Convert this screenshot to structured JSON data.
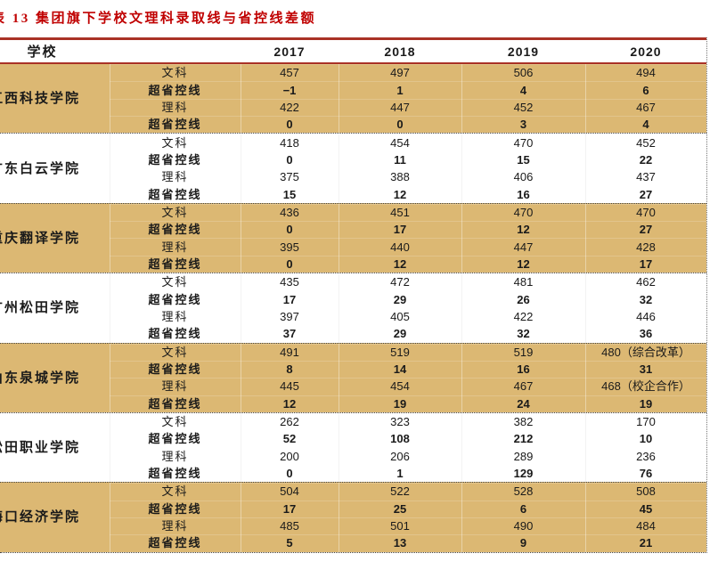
{
  "title": "表 13 集团旗下学校文理科录取线与省控线差额",
  "table": {
    "header": {
      "school": "学校",
      "years": [
        "2017",
        "2018",
        "2019",
        "2020"
      ]
    },
    "schools": [
      {
        "name": "江西科技学院",
        "rows": [
          {
            "label": "文科",
            "bold": false,
            "values": [
              "457",
              "497",
              "506",
              "494"
            ]
          },
          {
            "label": "超省控线",
            "bold": true,
            "values": [
              "−1",
              "1",
              "4",
              "6"
            ]
          },
          {
            "label": "理科",
            "bold": false,
            "values": [
              "422",
              "447",
              "452",
              "467"
            ]
          },
          {
            "label": "超省控线",
            "bold": true,
            "values": [
              "0",
              "0",
              "3",
              "4"
            ]
          }
        ]
      },
      {
        "name": "广东白云学院",
        "rows": [
          {
            "label": "文科",
            "bold": false,
            "values": [
              "418",
              "454",
              "470",
              "452"
            ]
          },
          {
            "label": "超省控线",
            "bold": true,
            "values": [
              "0",
              "11",
              "15",
              "22"
            ]
          },
          {
            "label": "理科",
            "bold": false,
            "values": [
              "375",
              "388",
              "406",
              "437"
            ]
          },
          {
            "label": "超省控线",
            "bold": true,
            "values": [
              "15",
              "12",
              "16",
              "27"
            ]
          }
        ]
      },
      {
        "name": "重庆翻译学院",
        "rows": [
          {
            "label": "文科",
            "bold": false,
            "values": [
              "436",
              "451",
              "470",
              "470"
            ]
          },
          {
            "label": "超省控线",
            "bold": true,
            "values": [
              "0",
              "17",
              "12",
              "27"
            ]
          },
          {
            "label": "理科",
            "bold": false,
            "values": [
              "395",
              "440",
              "447",
              "428"
            ]
          },
          {
            "label": "超省控线",
            "bold": true,
            "values": [
              "0",
              "12",
              "12",
              "17"
            ]
          }
        ]
      },
      {
        "name": "广州松田学院",
        "rows": [
          {
            "label": "文科",
            "bold": false,
            "values": [
              "435",
              "472",
              "481",
              "462"
            ]
          },
          {
            "label": "超省控线",
            "bold": true,
            "values": [
              "17",
              "29",
              "26",
              "32"
            ]
          },
          {
            "label": "理科",
            "bold": false,
            "values": [
              "397",
              "405",
              "422",
              "446"
            ]
          },
          {
            "label": "超省控线",
            "bold": true,
            "values": [
              "37",
              "29",
              "32",
              "36"
            ]
          }
        ]
      },
      {
        "name": "山东泉城学院",
        "rows": [
          {
            "label": "文科",
            "bold": false,
            "values": [
              "491",
              "519",
              "519",
              "480（综合改革）"
            ]
          },
          {
            "label": "超省控线",
            "bold": true,
            "values": [
              "8",
              "14",
              "16",
              "31"
            ]
          },
          {
            "label": "理科",
            "bold": false,
            "values": [
              "445",
              "454",
              "467",
              "468（校企合作）"
            ]
          },
          {
            "label": "超省控线",
            "bold": true,
            "values": [
              "12",
              "19",
              "24",
              "19"
            ]
          }
        ]
      },
      {
        "name": "松田职业学院",
        "rows": [
          {
            "label": "文科",
            "bold": false,
            "values": [
              "262",
              "323",
              "382",
              "170"
            ]
          },
          {
            "label": "超省控线",
            "bold": true,
            "values": [
              "52",
              "108",
              "212",
              "10"
            ]
          },
          {
            "label": "理科",
            "bold": false,
            "values": [
              "200",
              "206",
              "289",
              "236"
            ]
          },
          {
            "label": "超省控线",
            "bold": true,
            "values": [
              "0",
              "1",
              "129",
              "76"
            ]
          }
        ]
      },
      {
        "name": "海口经济学院",
        "rows": [
          {
            "label": "文科",
            "bold": false,
            "values": [
              "504",
              "522",
              "528",
              "508"
            ]
          },
          {
            "label": "超省控线",
            "bold": true,
            "values": [
              "17",
              "25",
              "6",
              "45"
            ]
          },
          {
            "label": "理科",
            "bold": false,
            "values": [
              "485",
              "501",
              "490",
              "484"
            ]
          },
          {
            "label": "超省控线",
            "bold": true,
            "values": [
              "5",
              "13",
              "9",
              "21"
            ]
          }
        ]
      }
    ]
  },
  "colors": {
    "title_red": "#c00000",
    "rule_red": "#a93226",
    "band_tan": "#dcb873",
    "text": "#1a1a1a"
  }
}
